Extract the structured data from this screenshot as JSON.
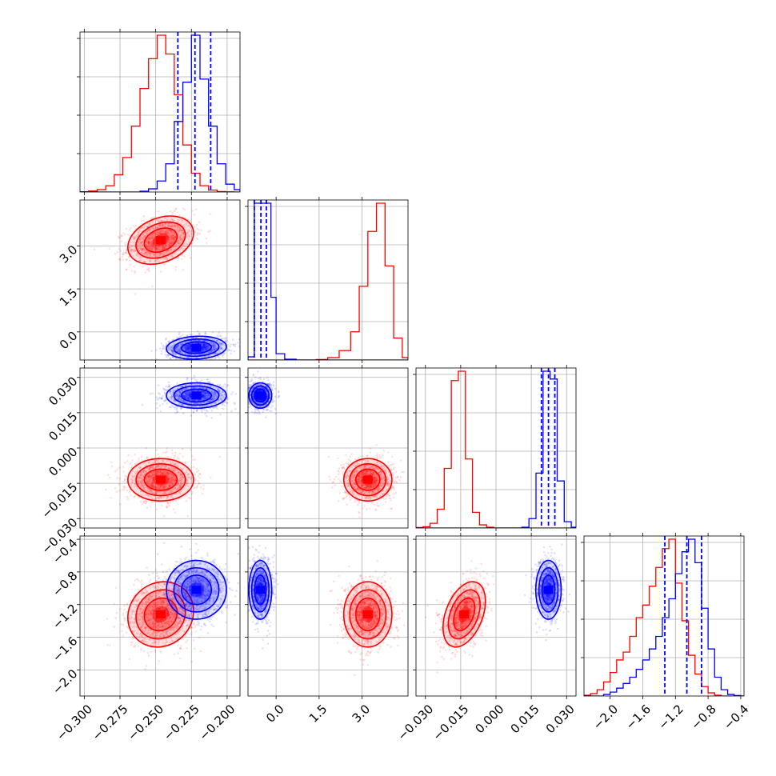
{
  "chart_data": {
    "type": "corner",
    "description": "",
    "n_params": 4,
    "colors": {
      "series_red": "#ff0000",
      "series_blue": "#0000ff",
      "grid": "#b0b0b0",
      "background": "#ffffff"
    },
    "grid": true,
    "params": [
      {
        "range": [
          -0.303,
          -0.191
        ],
        "ticks": [
          -0.3,
          -0.275,
          -0.25,
          -0.225,
          -0.2
        ],
        "tick_labels": [
          "−0.300",
          "−0.275",
          "−0.250",
          "−0.225",
          "−0.200"
        ]
      },
      {
        "range": [
          -0.98,
          4.6
        ],
        "ticks": [
          0.0,
          1.5,
          3.0
        ],
        "tick_labels": [
          "0.0",
          "1.5",
          "3.0"
        ]
      },
      {
        "range": [
          -0.034,
          0.034
        ],
        "ticks": [
          -0.03,
          -0.015,
          0.0,
          0.015,
          0.03
        ],
        "tick_labels": [
          "−0.030",
          "−0.015",
          "0.000",
          "0.015",
          "0.030"
        ]
      },
      {
        "range": [
          -2.32,
          -0.36
        ],
        "ticks": [
          -2.0,
          -1.6,
          -1.2,
          -0.8,
          -0.4
        ],
        "tick_labels": [
          "−2.0",
          "−1.6",
          "−1.2",
          "−0.8",
          "−0.4"
        ]
      }
    ],
    "series": [
      {
        "color": "#ff0000",
        "means": [
          -0.2465,
          3.2,
          -0.0135,
          -1.32
        ],
        "sigmas": [
          0.0115,
          0.42,
          0.0045,
          0.2
        ],
        "correlations": {
          "0-1": 0.3,
          "0-2": 0.0,
          "0-3": 0.1,
          "1-2": 0.0,
          "1-3": 0.0,
          "2-3": 0.4
        },
        "histograms": [
          {
            "edges": [
              -0.303,
              -0.297,
              -0.291,
              -0.285,
              -0.279,
              -0.273,
              -0.267,
              -0.261,
              -0.255,
              -0.249,
              -0.243,
              -0.237,
              -0.231,
              -0.225,
              -0.219,
              -0.213,
              -0.207,
              -0.201,
              -0.195,
              -0.191
            ],
            "counts": [
              0.2,
              0.6,
              1.5,
              4,
              11,
              22,
              42,
              66,
              85,
              100,
              88,
              62,
              30,
              12,
              4,
              1.2,
              0.3,
              0.1,
              0
            ]
          },
          {
            "edges": [
              -0.98,
              -0.6,
              -0.2,
              0.2,
              0.6,
              1.0,
              1.4,
              1.8,
              2.2,
              2.6,
              2.9,
              3.2,
              3.5,
              3.8,
              4.1,
              4.4,
              4.6
            ],
            "counts": [
              0,
              0,
              0,
              0,
              0,
              0,
              0.3,
              1.5,
              6,
              18,
              47,
              82,
              100,
              60,
              14,
              1.5
            ]
          },
          {
            "edges": [
              -0.034,
              -0.031,
              -0.028,
              -0.025,
              -0.022,
              -0.019,
              -0.016,
              -0.013,
              -0.01,
              -0.007,
              -0.004,
              -0.001,
              0.002,
              0.005,
              0.008,
              0.011,
              0.014,
              0.017,
              0.02,
              0.023,
              0.026,
              0.029,
              0.032,
              0.034
            ],
            "counts": [
              0.3,
              0.8,
              3,
              12,
              38,
              94,
              100,
              44,
              10,
              2,
              0.5,
              0,
              0,
              0,
              0,
              0,
              0,
              0,
              0,
              0,
              0,
              0,
              0
            ]
          },
          {
            "edges": [
              -2.32,
              -2.24,
              -2.16,
              -2.08,
              -2.0,
              -1.92,
              -1.84,
              -1.76,
              -1.68,
              -1.6,
              -1.52,
              -1.44,
              -1.36,
              -1.28,
              -1.2,
              -1.12,
              -1.04,
              -0.96,
              -0.88,
              -0.8,
              -0.72,
              -0.64,
              -0.56,
              -0.48,
              -0.4,
              -0.36
            ],
            "counts": [
              0.5,
              1.5,
              4,
              9,
              15,
              23,
              28,
              38,
              50,
              58,
              70,
              82,
              94,
              100,
              72,
              48,
              26,
              14,
              6,
              2,
              0.5,
              0,
              0,
              0,
              0
            ]
          }
        ]
      },
      {
        "color": "#0000ff",
        "means": [
          -0.2215,
          -0.55,
          0.0223,
          -1.02
        ],
        "sigmas": [
          0.0105,
          0.2,
          0.0027,
          0.18
        ],
        "correlations": {
          "0-1": 0.1,
          "0-2": 0.0,
          "0-3": 0.0,
          "1-2": 0.0,
          "1-3": 0.0,
          "2-3": 0.0
        },
        "quantile_lines": [
          [
            -0.2345,
            -0.2225,
            -0.2115
          ],
          [
            -0.76,
            -0.53,
            -0.34
          ],
          [
            0.0193,
            0.0223,
            0.025
          ],
          [
            -1.33,
            -1.06,
            -0.88
          ]
        ],
        "histograms": [
          {
            "edges": [
              -0.303,
              -0.297,
              -0.291,
              -0.285,
              -0.279,
              -0.273,
              -0.267,
              -0.261,
              -0.255,
              -0.249,
              -0.243,
              -0.237,
              -0.231,
              -0.225,
              -0.219,
              -0.213,
              -0.207,
              -0.201,
              -0.195,
              -0.191
            ],
            "counts": [
              0,
              0,
              0,
              0,
              0,
              0,
              0,
              0.5,
              2,
              7,
              18,
              45,
              70,
              100,
              72,
              42,
              18,
              5,
              1.5
            ]
          },
          {
            "edges": [
              -0.98,
              -0.76,
              -0.53,
              -0.34,
              -0.18,
              0.0,
              0.3,
              0.7,
              1.2,
              4.6
            ],
            "counts": [
              2,
              100,
              100,
              100,
              40,
              4,
              0.5,
              0,
              0
            ]
          },
          {
            "edges": [
              -0.034,
              -0.031,
              -0.028,
              -0.025,
              -0.022,
              -0.019,
              -0.016,
              -0.013,
              -0.01,
              -0.007,
              -0.004,
              -0.001,
              0.002,
              0.005,
              0.008,
              0.011,
              0.014,
              0.017,
              0.02,
              0.023,
              0.026,
              0.029,
              0.032,
              0.034
            ],
            "counts": [
              0,
              0,
              0,
              0,
              0,
              0,
              0,
              0,
              0,
              0,
              0,
              0,
              0,
              0,
              0,
              0.5,
              6,
              35,
              100,
              95,
              30,
              4,
              0.5
            ]
          },
          {
            "edges": [
              -2.32,
              -2.24,
              -2.16,
              -2.08,
              -2.0,
              -1.92,
              -1.84,
              -1.76,
              -1.68,
              -1.6,
              -1.52,
              -1.44,
              -1.36,
              -1.28,
              -1.2,
              -1.12,
              -1.04,
              -0.96,
              -0.88,
              -0.8,
              -0.72,
              -0.64,
              -0.56,
              -0.48,
              -0.4,
              -0.36
            ],
            "counts": [
              0,
              0,
              0,
              1,
              2.5,
              5,
              8,
              12,
              17,
              23,
              30,
              38,
              50,
              62,
              78,
              92,
              100,
              85,
              56,
              30,
              12,
              4,
              1,
              0.3,
              0
            ]
          }
        ]
      }
    ]
  }
}
